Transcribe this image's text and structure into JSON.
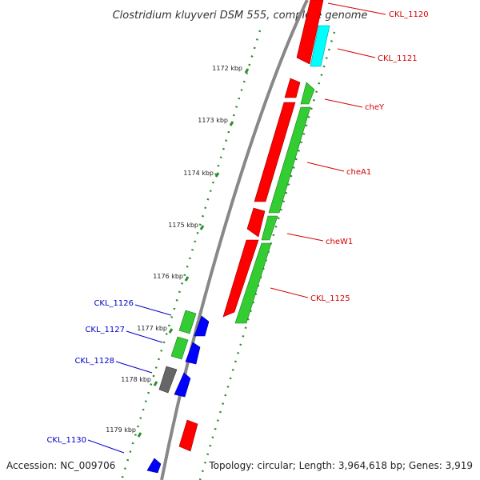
{
  "title": "Clostridium kluyveri DSM 555, complete genome",
  "accession": "Accession: NC_009706",
  "summary": "Topology: circular; Length: 3,964,618 bp; Genes: 3,919",
  "colors": {
    "backbone": "#8a8a8a",
    "tick": "#2e8b2e",
    "forward_label": "#d40000",
    "reverse_label": "#0000cc",
    "red": "#ff0000",
    "green": "#33cc33",
    "cyan": "#00ffff",
    "blue": "#0000ff",
    "gray": "#666666"
  },
  "ticks": [
    "1172 kbp",
    "1173 kbp",
    "1174 kbp",
    "1175 kbp",
    "1176 kbp",
    "1177 kbp",
    "1178 kbp",
    "1179 kbp"
  ],
  "forward_labels": [
    "CKL_1120",
    "CKL_1121",
    "cheY",
    "cheA1",
    "cheW1",
    "CKL_1125"
  ],
  "reverse_labels": [
    "CKL_1126",
    "CKL_1127",
    "CKL_1128",
    "CKL_1130"
  ]
}
